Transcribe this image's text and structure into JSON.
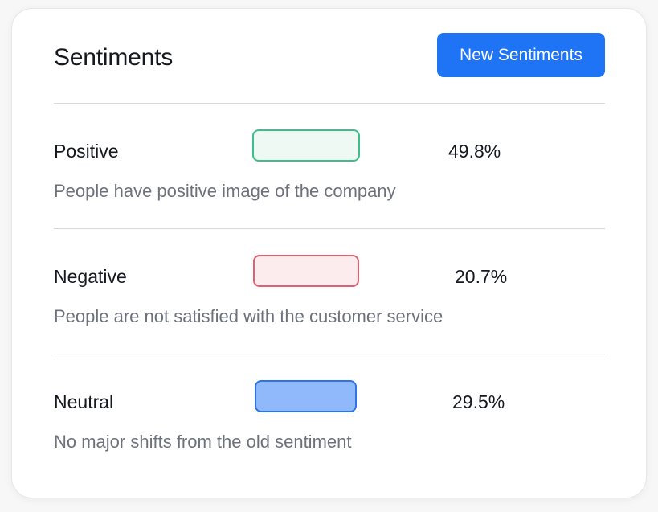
{
  "card": {
    "title": "Sentiments",
    "new_button_label": "New Sentiments"
  },
  "sentiments": [
    {
      "label": "Positive",
      "percent": "49.8%",
      "description": "People have positive image of the company",
      "swatch_fill": "#eef9f3",
      "swatch_border": "#3dbf8a"
    },
    {
      "label": "Negative",
      "percent": "20.7%",
      "description": "People are not satisfied with the customer service",
      "swatch_fill": "#fdecee",
      "swatch_border": "#e0606f"
    },
    {
      "label": "Neutral",
      "percent": "29.5%",
      "description": "No major shifts from the old sentiment",
      "swatch_fill": "#8fb9fb",
      "swatch_border": "#2f74e6"
    }
  ],
  "colors": {
    "accent": "#1f74f5",
    "divider": "#d7d8dc",
    "muted_text": "#6c717b"
  }
}
